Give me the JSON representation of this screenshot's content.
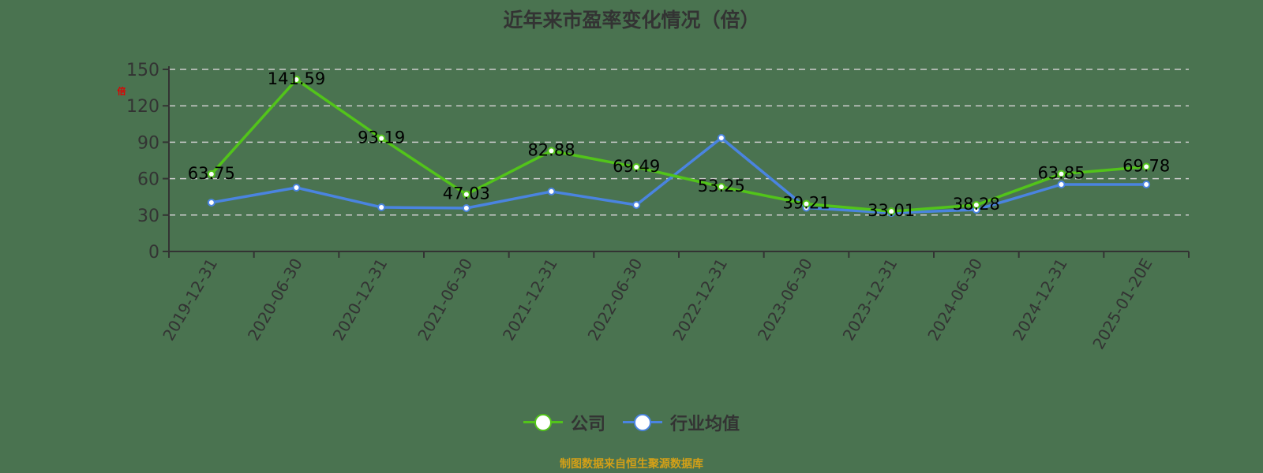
{
  "title": "近年来市盈率变化情况（倍）",
  "unit_label": "倍",
  "source": "制图数据来自恒生聚源数据库",
  "colors": {
    "background": "#4a7350",
    "company": "#52c41a",
    "industry": "#4a84e0",
    "grid": "#cccccc",
    "axis": "#333333",
    "source_text": "#d4a017"
  },
  "legend": [
    {
      "label": "公司",
      "color": "#52c41a"
    },
    {
      "label": "行业均值",
      "color": "#4a84e0"
    }
  ],
  "chart_data": {
    "type": "line",
    "title": "近年来市盈率变化情况（倍）",
    "xlabel": "",
    "ylabel": "倍",
    "ylim": [
      0,
      150
    ],
    "yticks": [
      0,
      30,
      60,
      90,
      120,
      150
    ],
    "grid": true,
    "legend_position": "bottom",
    "categories": [
      "2019-12-31",
      "2020-06-30",
      "2020-12-31",
      "2021-06-30",
      "2021-12-31",
      "2022-06-30",
      "2022-12-31",
      "2023-06-30",
      "2023-12-31",
      "2024-06-30",
      "2024-12-31",
      "2025-01-20E"
    ],
    "series": [
      {
        "name": "公司",
        "values": [
          63.75,
          141.59,
          93.19,
          47.03,
          82.88,
          69.49,
          53.25,
          39.21,
          33.01,
          38.28,
          63.85,
          69.78
        ],
        "labels_shown": true
      },
      {
        "name": "行业均值",
        "values": [
          40.3,
          52.6,
          36.4,
          35.7,
          49.4,
          38.3,
          93.5,
          36.0,
          31.8,
          34.4,
          55.2,
          55.2
        ],
        "labels_shown": false
      }
    ]
  }
}
